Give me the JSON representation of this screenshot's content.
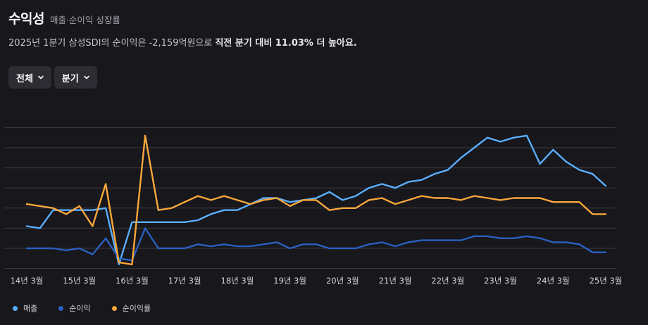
{
  "header": {
    "title": "수익성",
    "subtitle": "매출·순이익 성장률"
  },
  "summary": {
    "prefix": "2025년 1분기 삼성SDI의 순이익은 -2,159억원으로 ",
    "emphasis": "직전 분기 대비 11.03% 더 높아요."
  },
  "filters": {
    "range": "전체",
    "period": "분기"
  },
  "icons": {
    "dropdown": "chevron-down-icon"
  },
  "colors": {
    "background": "#17171c",
    "revenue": "#5aaefc",
    "net_income": "#2b5fbe",
    "margin": "#f8a63b",
    "grid": "#3b3b42"
  },
  "chart_data": {
    "type": "line",
    "x_tick_labels": [
      "14년 3월",
      "15년 3월",
      "16년 3월",
      "17년 3월",
      "18년 3월",
      "19년 3월",
      "20년 3월",
      "21년 3월",
      "22년 3월",
      "23년 3월",
      "24년 3월",
      "25년 3월"
    ],
    "x_range": [
      0,
      44
    ],
    "y_range": [
      -1.2,
      6.5
    ],
    "y_ticks": [
      -1,
      0,
      1,
      2,
      3,
      4,
      5,
      6
    ],
    "grid": "horizontal",
    "legend_position": "bottom-left",
    "series": [
      {
        "name": "매출",
        "key": "revenue",
        "values": [
          1.1,
          1.0,
          1.9,
          1.9,
          1.9,
          1.9,
          2.0,
          -0.8,
          1.3,
          1.3,
          1.3,
          1.3,
          1.3,
          1.4,
          1.7,
          1.9,
          1.9,
          2.2,
          2.5,
          2.5,
          2.3,
          2.4,
          2.5,
          2.8,
          2.4,
          2.6,
          3.0,
          3.2,
          3.0,
          3.3,
          3.4,
          3.7,
          3.9,
          4.5,
          5.0,
          5.5,
          5.3,
          5.5,
          5.6,
          4.2,
          4.9,
          4.3,
          3.9,
          3.7,
          3.1
        ]
      },
      {
        "name": "순이익",
        "key": "net_income",
        "values": [
          0.0,
          0.0,
          0.0,
          -0.1,
          0.0,
          -0.3,
          0.5,
          -0.5,
          -0.6,
          1.0,
          0.0,
          0.0,
          0.0,
          0.2,
          0.1,
          0.2,
          0.1,
          0.1,
          0.2,
          0.3,
          0.0,
          0.2,
          0.2,
          0.0,
          0.0,
          0.0,
          0.2,
          0.3,
          0.1,
          0.3,
          0.4,
          0.4,
          0.4,
          0.4,
          0.6,
          0.6,
          0.5,
          0.5,
          0.6,
          0.5,
          0.3,
          0.3,
          0.2,
          -0.2,
          -0.2
        ]
      },
      {
        "name": "순이익률",
        "key": "margin",
        "values": [
          2.2,
          2.1,
          2.0,
          1.7,
          2.1,
          1.1,
          3.2,
          -0.7,
          -0.8,
          5.6,
          1.9,
          2.0,
          2.3,
          2.6,
          2.4,
          2.6,
          2.4,
          2.2,
          2.4,
          2.5,
          2.1,
          2.4,
          2.4,
          1.9,
          2.0,
          2.0,
          2.4,
          2.5,
          2.2,
          2.4,
          2.6,
          2.5,
          2.5,
          2.4,
          2.6,
          2.5,
          2.4,
          2.5,
          2.5,
          2.5,
          2.3,
          2.3,
          2.3,
          1.7,
          1.7
        ]
      }
    ]
  }
}
